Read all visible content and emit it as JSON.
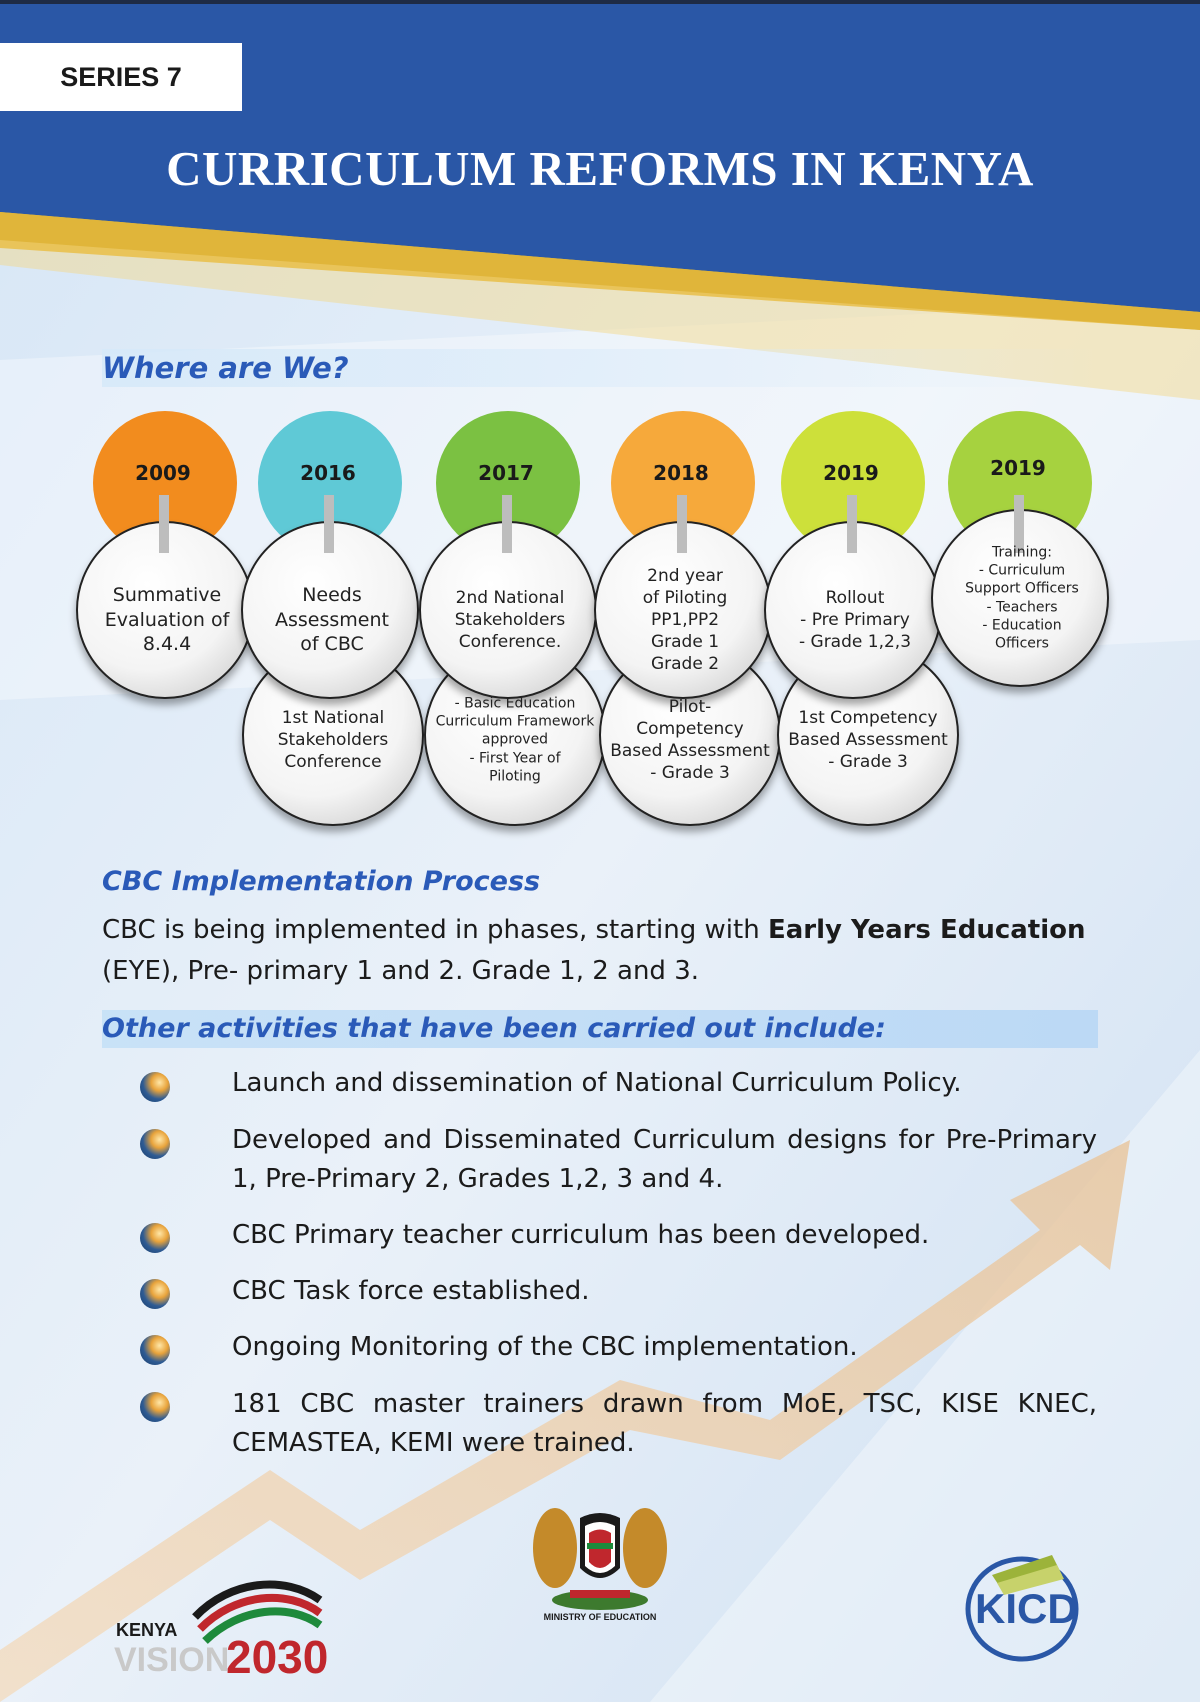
{
  "header": {
    "series_label": "SERIES 7",
    "title": "CURRICULUM REFORMS IN KENYA"
  },
  "where": {
    "heading": "Where are We?",
    "timeline": [
      {
        "year": "2009",
        "top_text": [
          "Summative",
          "Evaluation of",
          "8.4.4"
        ],
        "bottom_text": [],
        "color": "#f28c1e"
      },
      {
        "year": "2016",
        "top_text": [
          "Needs",
          "Assessment",
          "of CBC"
        ],
        "bottom_text": [
          "1st National",
          "Stakeholders",
          "Conference"
        ],
        "color": "#5fc9d6"
      },
      {
        "year": "2017",
        "top_text": [
          "2nd  National",
          "Stakeholders",
          "Conference."
        ],
        "bottom_text": [
          "- Basic Education",
          "Curriculum Framework",
          "approved",
          "- First Year of",
          "Piloting"
        ],
        "color": "#7bc142"
      },
      {
        "year": "2018",
        "top_text": [
          "2nd year",
          "of Piloting",
          "PP1,PP2",
          "Grade 1",
          "Grade 2"
        ],
        "bottom_text": [
          "Pilot-",
          "Competency",
          "Based Assessment",
          "- Grade 3"
        ],
        "color": "#f6a93b"
      },
      {
        "year": "2019",
        "top_text": [
          "Rollout",
          "- Pre Primary",
          "- Grade 1,2,3"
        ],
        "bottom_text": [
          "1st Competency",
          "Based Assessment",
          "- Grade 3"
        ],
        "color": "#cde03a"
      },
      {
        "year": "2019",
        "top_text": [
          "Training:",
          "- Curriculum",
          "Support Officers",
          "- Teachers",
          "- Education",
          "Officers"
        ],
        "bottom_text": [],
        "color": "#a6d23f"
      }
    ]
  },
  "cbc": {
    "heading": "CBC Implementation Process",
    "para_part1": "CBC is being  implemented in phases, starting with ",
    "para_bold": "Early Years Education",
    "para_part2": " (EYE), Pre- primary 1 and 2.  Grade 1, 2 and 3."
  },
  "other": {
    "heading": "Other activities that have been carried out include:",
    "items": [
      "Launch and dissemination  of National Curriculum Policy.",
      "Developed and Disseminated Curriculum designs for Pre-Primary 1, Pre-Primary 2, Grades 1,2, 3 and 4.",
      "CBC Primary teacher curriculum has been developed.",
      "CBC Task force established.",
      "Ongoing Monitoring of the CBC implementation.",
      "181 CBC master trainers drawn from MoE, TSC, KISE KNEC, CEMASTEA, KEMI were trained."
    ]
  },
  "footer": {
    "vision_kenya": "KENYA",
    "vision_word": "VISION",
    "vision_year": "2030",
    "ministry": "MINISTRY OF EDUCATION",
    "kicd": "KICD"
  },
  "colors": {
    "header_blue": "#2a57a6",
    "gold": "#deb438",
    "heading_blue": "#2a5ab8"
  }
}
